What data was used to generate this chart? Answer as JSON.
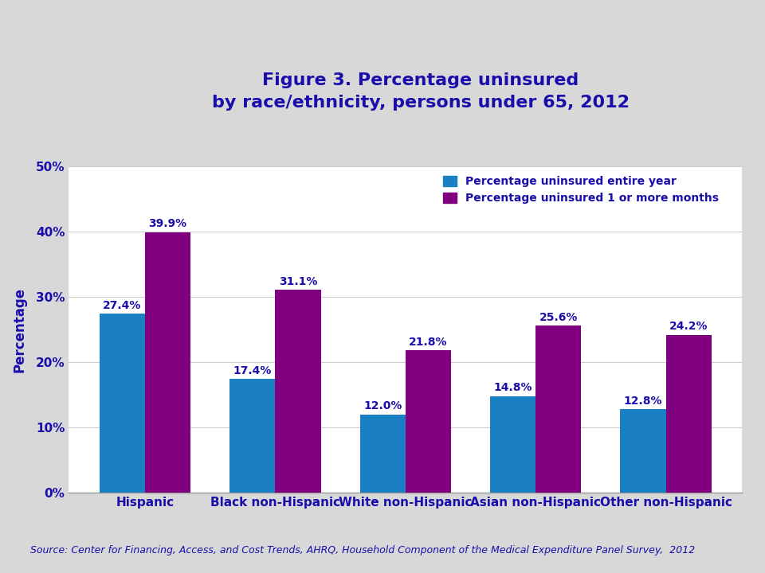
{
  "title_line1": "Figure 3. Percentage uninsured",
  "title_line2": "by race/ethnicity, persons under 65, 2012",
  "title_color": "#1a0dab",
  "categories": [
    "Hispanic",
    "Black non-Hispanic",
    "White non-Hispanic",
    "Asian non-Hispanic",
    "Other non-Hispanic"
  ],
  "series1_label": "Percentage uninsured entire year",
  "series2_label": "Percentage uninsured 1 or more months",
  "series1_values": [
    27.4,
    17.4,
    12.0,
    14.8,
    12.8
  ],
  "series2_values": [
    39.9,
    31.1,
    21.8,
    25.6,
    24.2
  ],
  "series1_color": "#1b7fc4",
  "series2_color": "#800080",
  "ylabel": "Percentage",
  "ylim": [
    0,
    50
  ],
  "yticks": [
    0,
    10,
    20,
    30,
    40,
    50
  ],
  "ytick_labels": [
    "0%",
    "10%",
    "20%",
    "30%",
    "40%",
    "50%"
  ],
  "bar_width": 0.35,
  "annotation_color": "#1a0dab",
  "annotation_fontsize": 10,
  "axis_label_color": "#1a0dab",
  "tick_color": "#1a0dab",
  "source_text": "Source: Center for Financing, Access, and Cost Trends, AHRQ, Household Component of the Medical Expenditure Panel Survey,  2012",
  "source_fontsize": 9,
  "source_color": "#1a0dab",
  "figure_bg": "#d8d8d8",
  "plot_bg": "#ffffff",
  "separator_color": "#999999",
  "legend_label_color": "#1a0dab",
  "legend_fontsize": 10,
  "title_fontsize": 16
}
